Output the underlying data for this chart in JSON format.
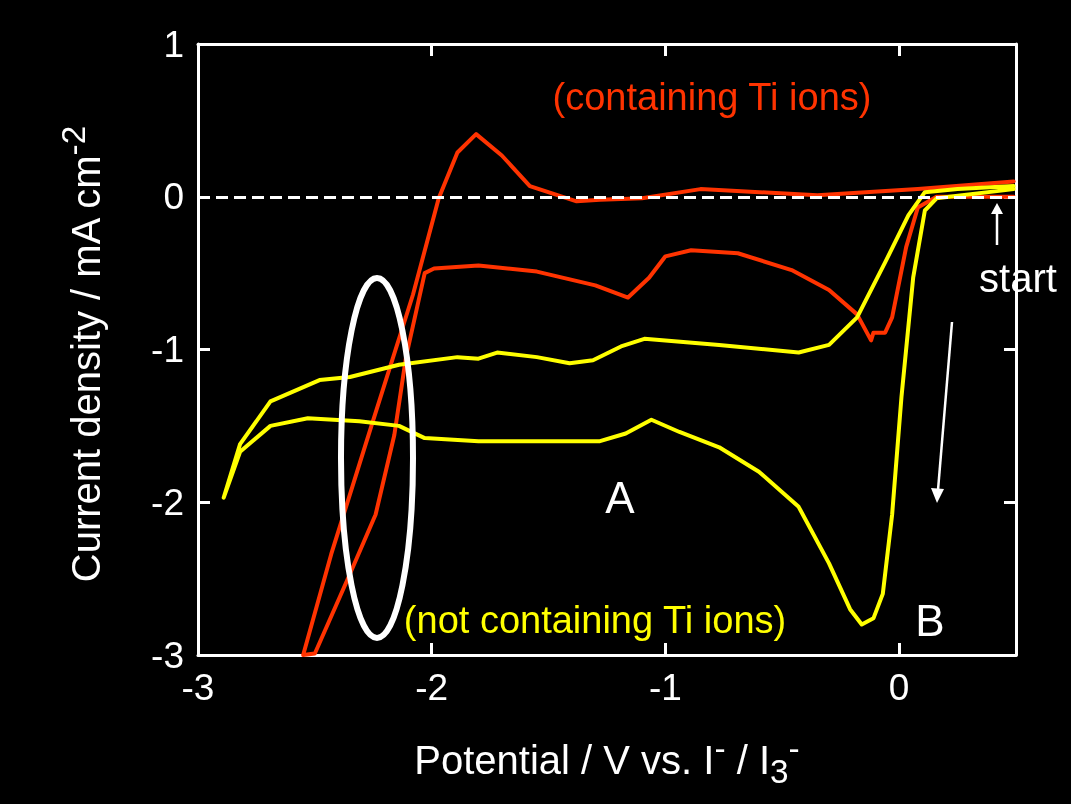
{
  "chart_data": {
    "type": "line",
    "xlabel": "Potential / V vs. I$^{-}$ / I$_{3}$$^{-}$",
    "ylabel": "Current density / mA cm$^{-2}$",
    "xlim": [
      -3,
      0.5
    ],
    "xticks": [
      -3,
      -2,
      -1,
      0
    ],
    "ylim": [
      -3,
      1
    ],
    "yticks": [
      -3,
      -2,
      -1,
      0,
      1
    ],
    "grid": false,
    "legend": false,
    "marker": "none",
    "line_style": "solid",
    "ref_lines": [
      {
        "axis": "y",
        "value": 0,
        "label": null,
        "color": "#ffffff",
        "line_style": "dashed"
      }
    ],
    "annotations": [
      "A",
      "B",
      "start"
    ],
    "series": [
      {
        "name": "(containing Ti ions)",
        "color": "#ff3300",
        "x": [
          0.49,
          0.16,
          0.08,
          0.03,
          -0.03,
          -0.06,
          -0.11,
          -0.12,
          -0.18,
          -0.3,
          -0.46,
          -0.69,
          -0.89,
          -1.0,
          -1.07,
          -1.16,
          -1.3,
          -1.55,
          -1.8,
          -1.99,
          -2.03,
          -2.11,
          -2.16,
          -2.24,
          -2.35,
          -2.5,
          -2.55,
          -2.43,
          -2.26,
          -2.08,
          -1.97,
          -1.89,
          -1.81,
          -1.7,
          -1.58,
          -1.38,
          -1.28,
          -1.1,
          -0.85,
          -0.35,
          0.08,
          0.49
        ],
        "values": [
          0.0,
          0.0,
          -0.07,
          -0.33,
          -0.79,
          -0.89,
          -0.89,
          -0.94,
          -0.77,
          -0.61,
          -0.48,
          -0.37,
          -0.35,
          -0.39,
          -0.53,
          -0.66,
          -0.58,
          -0.49,
          -0.45,
          -0.47,
          -0.5,
          -1.05,
          -1.56,
          -2.08,
          -2.47,
          -2.99,
          -3.0,
          -2.34,
          -1.51,
          -0.64,
          -0.01,
          0.29,
          0.41,
          0.27,
          0.07,
          -0.03,
          -0.02,
          -0.01,
          0.05,
          0.01,
          0.05,
          0.1
        ]
      },
      {
        "name": "(not containing Ti ions)",
        "color": "#ffff00",
        "x": [
          0.49,
          0.16,
          0.11,
          0.06,
          0.01,
          -0.03,
          -0.07,
          -0.11,
          -0.16,
          -0.21,
          -0.3,
          -0.43,
          -0.6,
          -0.77,
          -0.94,
          -1.06,
          -1.17,
          -1.28,
          -1.8,
          -2.03,
          -2.14,
          -2.31,
          -2.53,
          -2.69,
          -2.82,
          -2.89,
          -2.82,
          -2.69,
          -2.48,
          -2.35,
          -2.14,
          -1.89,
          -1.8,
          -1.72,
          -1.55,
          -1.41,
          -1.31,
          -1.19,
          -1.09,
          -0.77,
          -0.43,
          -0.3,
          -0.18,
          -0.06,
          0.04,
          0.11,
          0.25,
          0.49
        ],
        "values": [
          0.05,
          -0.01,
          -0.09,
          -0.53,
          -1.31,
          -2.08,
          -2.6,
          -2.76,
          -2.8,
          -2.7,
          -2.4,
          -2.03,
          -1.8,
          -1.64,
          -1.54,
          -1.46,
          -1.55,
          -1.6,
          -1.6,
          -1.58,
          -1.5,
          -1.47,
          -1.45,
          -1.5,
          -1.67,
          -1.97,
          -1.62,
          -1.34,
          -1.2,
          -1.18,
          -1.1,
          -1.05,
          -1.06,
          -1.02,
          -1.05,
          -1.09,
          -1.07,
          -0.98,
          -0.93,
          -0.97,
          -1.02,
          -0.97,
          -0.79,
          -0.43,
          -0.12,
          0.03,
          0.05,
          0.07
        ]
      }
    ]
  }
}
